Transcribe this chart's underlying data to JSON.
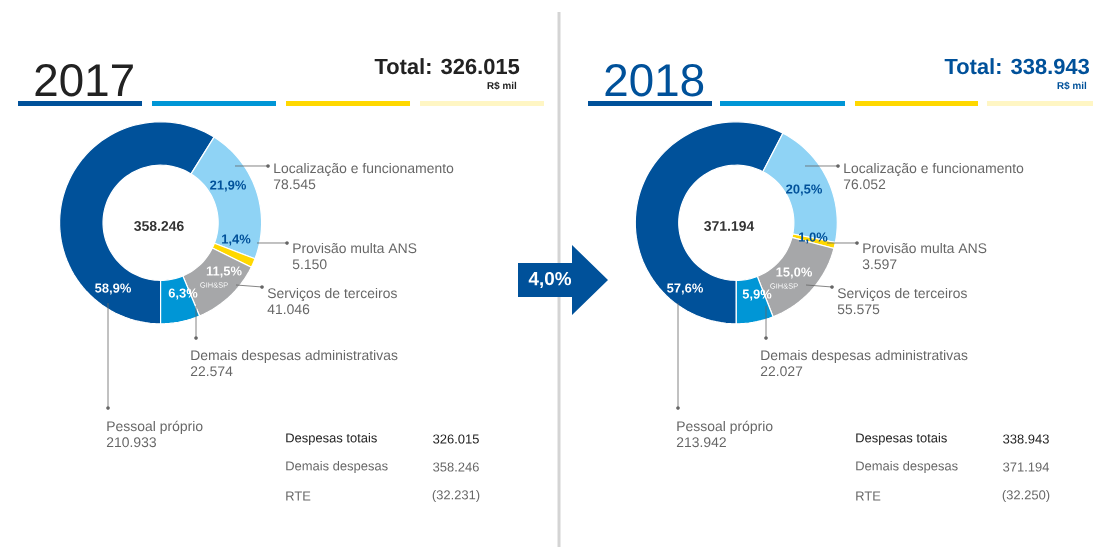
{
  "chart_data": [
    {
      "type": "donut",
      "title": "2017",
      "subtitle": "Total: 326.015",
      "categories": [
        "Pessoal próprio",
        "Localização e funcionamento",
        "Provisão multa ANS",
        "Serviços de terceiros",
        "Demais despesas administrativas"
      ],
      "values": [
        210933,
        78545,
        5150,
        41046,
        22574
      ],
      "value_labels": [
        "210.933",
        "78.545",
        "5.150",
        "41.046",
        "22.574"
      ],
      "colors": [
        "#00519a",
        "#8fd3f5",
        "#ffd800",
        "#a6a7a9",
        "#0096d6"
      ],
      "annotations": [
        "58,9%",
        "21,9%",
        "1,4%",
        "11,5%",
        "6,3%",
        "358.246",
        "R$ mil",
        "GIH&SP",
        "Despesas totais",
        "326.015",
        "Demais despesas",
        "358.246",
        "RTE",
        "(32.231)",
        "4,0%"
      ]
    },
    {
      "type": "donut",
      "title": "2018",
      "subtitle": "Total: 338.943",
      "categories": [
        "Pessoal próprio",
        "Localização e funcionamento",
        "Provisão multa ANS",
        "Serviços de terceiros",
        "Demais despesas administrativas"
      ],
      "values": [
        213942,
        76052,
        3597,
        55575,
        22027
      ],
      "value_labels": [
        "213.942",
        "76.052",
        "3.597",
        "55.575",
        "22.027"
      ],
      "colors": [
        "#00519a",
        "#8fd3f5",
        "#ffd800",
        "#a6a7a9",
        "#0096d6"
      ],
      "annotations": [
        "57,6%",
        "20,5%",
        "1,0%",
        "15,0%",
        "5,9%",
        "371.194",
        "R$ mil",
        "GIH&SP",
        "Despesas totais",
        "338.943",
        "Demais despesas",
        "371.194",
        "RTE",
        "(32.250)"
      ]
    }
  ]
}
